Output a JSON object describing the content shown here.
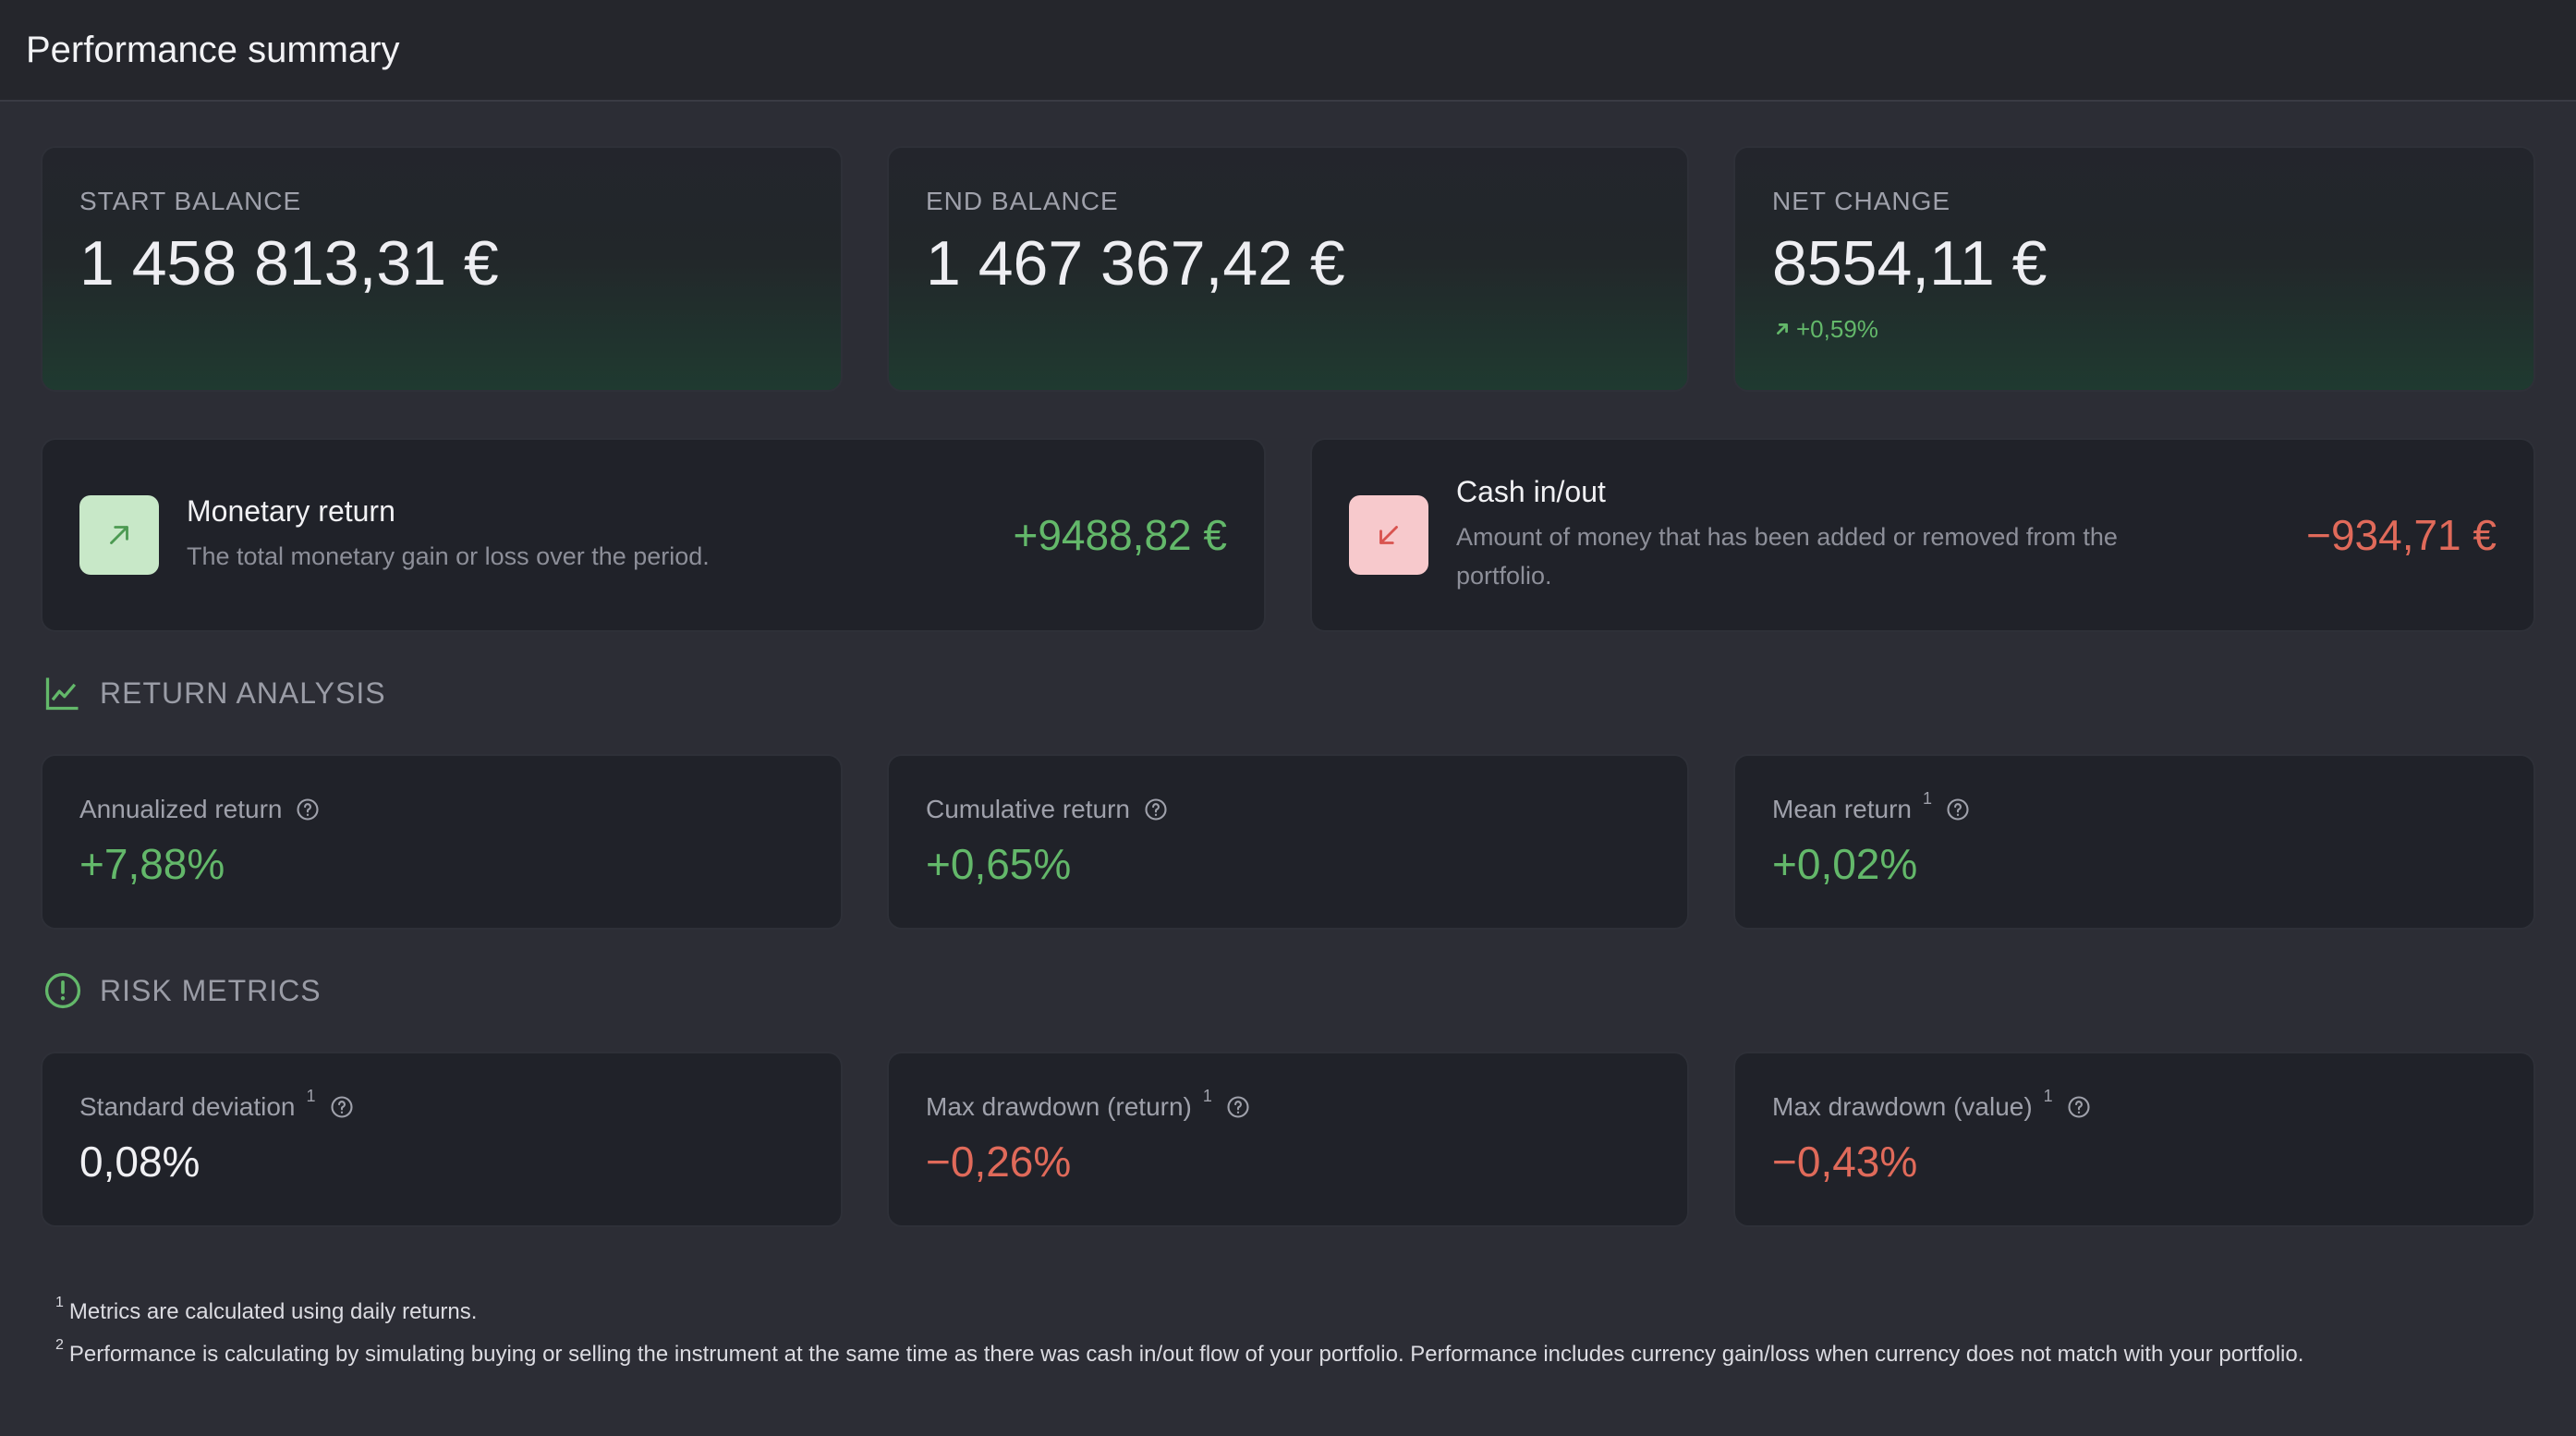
{
  "header": {
    "title": "Performance summary"
  },
  "balances": [
    {
      "label": "START BALANCE",
      "value": "1 458 813,31 €"
    },
    {
      "label": "END BALANCE",
      "value": "1 467 367,42 €"
    },
    {
      "label": "NET CHANGE",
      "value": "8554,11 €",
      "change": "+0,59%"
    }
  ],
  "flows": {
    "monetary": {
      "title": "Monetary return",
      "description": "The total monetary gain or loss over the period.",
      "value": "+9488,82 €"
    },
    "cash": {
      "title": "Cash in/out",
      "description": "Amount of money that has been added or removed from the portfolio.",
      "value": "−934,71 €"
    }
  },
  "return_analysis": {
    "title": "RETURN ANALYSIS",
    "metrics": [
      {
        "label": "Annualized return",
        "sup": "",
        "value": "+7,88%"
      },
      {
        "label": "Cumulative return",
        "sup": "",
        "value": "+0,65%"
      },
      {
        "label": "Mean return",
        "sup": "1",
        "value": "+0,02%"
      }
    ]
  },
  "risk_metrics": {
    "title": "RISK METRICS",
    "metrics": [
      {
        "label": "Standard deviation",
        "sup": "1",
        "value": "0,08%"
      },
      {
        "label": "Max drawdown (return)",
        "sup": "1",
        "value": "−0,26%"
      },
      {
        "label": "Max drawdown (value)",
        "sup": "1",
        "value": "−0,43%"
      }
    ]
  },
  "footnotes": [
    {
      "mark": "1",
      "text": "Metrics are calculated using daily returns."
    },
    {
      "mark": "2",
      "text": "Performance is calculating by simulating buying or selling the instrument at the same time as there was cash in/out flow of your portfolio. Performance includes currency gain/loss when currency does not match with your portfolio."
    }
  ],
  "colors": {
    "positive": "#63b86a",
    "negative": "#e06a5a",
    "background": "#2c2d35",
    "card": "#202229"
  }
}
